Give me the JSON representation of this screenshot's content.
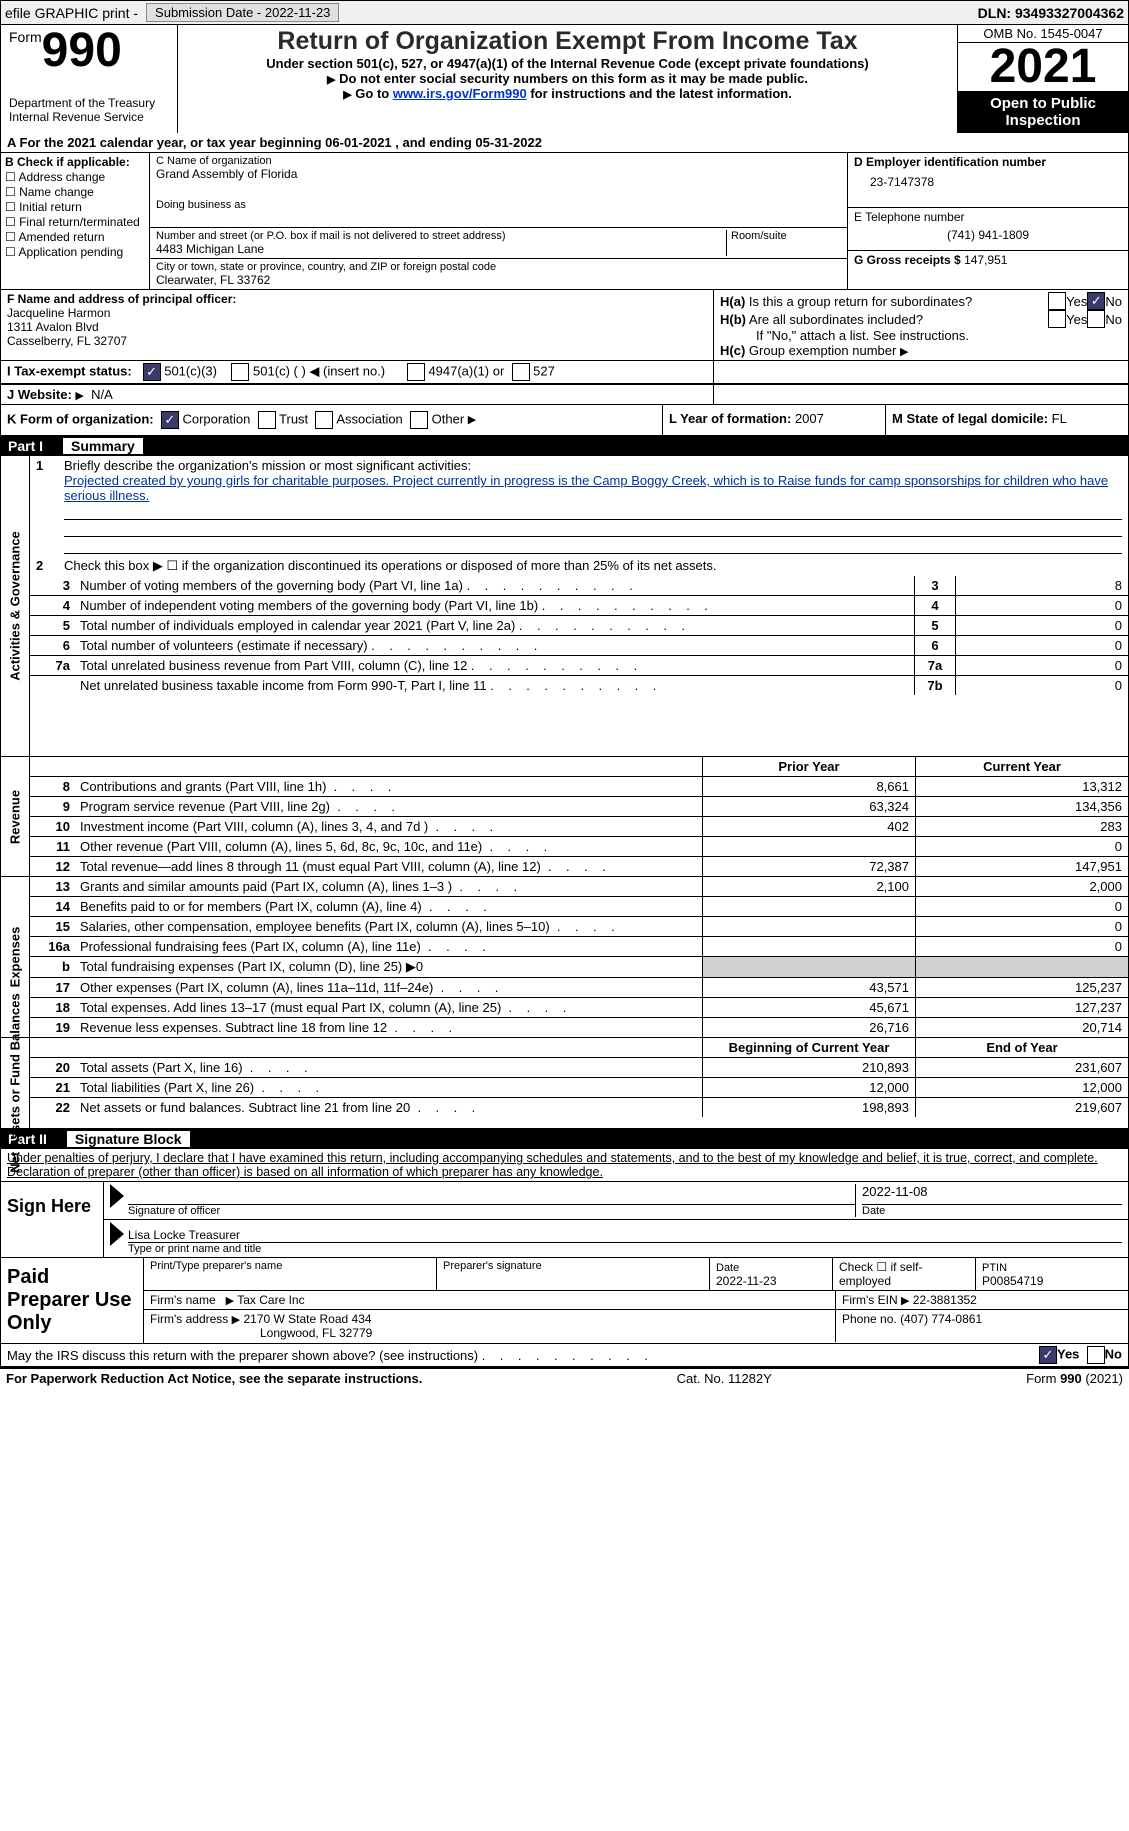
{
  "top": {
    "efile": "efile GRAPHIC print -",
    "submission": "Submission Date - 2022-11-23",
    "dln": "DLN: 93493327004362"
  },
  "header": {
    "form_word": "Form",
    "form_num": "990",
    "title": "Return of Organization Exempt From Income Tax",
    "sub1": "Under section 501(c), 527, or 4947(a)(1) of the Internal Revenue Code (except private foundations)",
    "sub2": "Do not enter social security numbers on this form as it may be made public.",
    "sub3_pre": "Go to ",
    "sub3_link": "www.irs.gov/Form990",
    "sub3_post": " for instructions and the latest information.",
    "dept": "Department of the Treasury",
    "irs": "Internal Revenue Service",
    "omb": "OMB No. 1545-0047",
    "year": "2021",
    "open": "Open to Public Inspection"
  },
  "line_a": "For the 2021 calendar year, or tax year beginning 06-01-2021    , and ending 05-31-2022",
  "box_b": {
    "header": "B Check if applicable:",
    "items": [
      "Address change",
      "Name change",
      "Initial return",
      "Final return/terminated",
      "Amended return",
      "Application pending"
    ]
  },
  "box_c": {
    "label_name": "C Name of organization",
    "org_name": "Grand Assembly of Florida",
    "dba": "Doing business as",
    "addr_label": "Number and street (or P.O. box if mail is not delivered to street address)",
    "room": "Room/suite",
    "addr": "4483 Michigan Lane",
    "city_label": "City or town, state or province, country, and ZIP or foreign postal code",
    "city": "Clearwater, FL  33762"
  },
  "box_d": {
    "ein_label": "D Employer identification number",
    "ein": "23-7147378",
    "tel_label": "E Telephone number",
    "tel": "(741) 941-1809",
    "gross_label": "G Gross receipts $",
    "gross": "147,951"
  },
  "box_f": {
    "label": "F  Name and address of principal officer:",
    "name": "Jacqueline Harmon",
    "addr1": "1311 Avalon Blvd",
    "addr2": "Casselberry, FL  32707"
  },
  "box_h": {
    "ha": "Is this a group return for subordinates?",
    "hb": "Are all subordinates included?",
    "hc_note": "If \"No,\" attach a list. See instructions.",
    "hc": "Group exemption number",
    "yes": "Yes",
    "no": "No"
  },
  "status": {
    "label": "I    Tax-exempt status:",
    "opt1": "501(c)(3)",
    "opt2": "501(c) (  ) ◀ (insert no.)",
    "opt3": "4947(a)(1) or",
    "opt4": "527"
  },
  "website": {
    "label": "J    Website:",
    "val": "N/A"
  },
  "k": {
    "label": "K Form of organization:",
    "corp": "Corporation",
    "trust": "Trust",
    "assoc": "Association",
    "other": "Other"
  },
  "l": {
    "label": "L Year of formation:",
    "val": "2007"
  },
  "m": {
    "label": "M State of legal domicile:",
    "val": "FL"
  },
  "part1": {
    "num": "Part I",
    "title": "Summary"
  },
  "mission": {
    "num": "1",
    "prompt": "Briefly describe the organization's mission or most significant activities:",
    "text": "Projected created by young girls for charitable purposes. Project currently in progress is the Camp Boggy Creek, which is to Raise funds for camp sponsorships for children who have serious illness."
  },
  "line2": "Check this box ▶ ☐  if the organization discontinued its operations or disposed of more than 25% of its net assets.",
  "sections": {
    "activities": "Activities & Governance",
    "revenue": "Revenue",
    "expenses": "Expenses",
    "netassets": "Net Assets or Fund Balances"
  },
  "activities_lines": [
    {
      "n": "3",
      "d": "Number of voting members of the governing body (Part VI, line 1a)",
      "box": "3",
      "v": "8"
    },
    {
      "n": "4",
      "d": "Number of independent voting members of the governing body (Part VI, line 1b)",
      "box": "4",
      "v": "0"
    },
    {
      "n": "5",
      "d": "Total number of individuals employed in calendar year 2021 (Part V, line 2a)",
      "box": "5",
      "v": "0"
    },
    {
      "n": "6",
      "d": "Total number of volunteers (estimate if necessary)",
      "box": "6",
      "v": "0"
    },
    {
      "n": "7a",
      "d": "Total unrelated business revenue from Part VIII, column (C), line 12",
      "box": "7a",
      "v": "0"
    },
    {
      "n": "",
      "d": "Net unrelated business taxable income from Form 990-T, Part I, line 11",
      "box": "7b",
      "v": "0"
    }
  ],
  "col_headers": {
    "prior": "Prior Year",
    "current": "Current Year",
    "beg": "Beginning of Current Year",
    "end": "End of Year"
  },
  "revenue_lines": [
    {
      "n": "8",
      "d": "Contributions and grants (Part VIII, line 1h)",
      "p": "8,661",
      "c": "13,312"
    },
    {
      "n": "9",
      "d": "Program service revenue (Part VIII, line 2g)",
      "p": "63,324",
      "c": "134,356"
    },
    {
      "n": "10",
      "d": "Investment income (Part VIII, column (A), lines 3, 4, and 7d )",
      "p": "402",
      "c": "283"
    },
    {
      "n": "11",
      "d": "Other revenue (Part VIII, column (A), lines 5, 6d, 8c, 9c, 10c, and 11e)",
      "p": "",
      "c": "0"
    },
    {
      "n": "12",
      "d": "Total revenue—add lines 8 through 11 (must equal Part VIII, column (A), line 12)",
      "p": "72,387",
      "c": "147,951"
    }
  ],
  "expense_lines": [
    {
      "n": "13",
      "d": "Grants and similar amounts paid (Part IX, column (A), lines 1–3 )",
      "p": "2,100",
      "c": "2,000"
    },
    {
      "n": "14",
      "d": "Benefits paid to or for members (Part IX, column (A), line 4)",
      "p": "",
      "c": "0"
    },
    {
      "n": "15",
      "d": "Salaries, other compensation, employee benefits (Part IX, column (A), lines 5–10)",
      "p": "",
      "c": "0"
    },
    {
      "n": "16a",
      "d": "Professional fundraising fees (Part IX, column (A), line 11e)",
      "p": "",
      "c": "0"
    },
    {
      "n": "b",
      "d": "Total fundraising expenses (Part IX, column (D), line 25) ▶0",
      "p": "grey",
      "c": "grey"
    },
    {
      "n": "17",
      "d": "Other expenses (Part IX, column (A), lines 11a–11d, 11f–24e)",
      "p": "43,571",
      "c": "125,237"
    },
    {
      "n": "18",
      "d": "Total expenses. Add lines 13–17 (must equal Part IX, column (A), line 25)",
      "p": "45,671",
      "c": "127,237"
    },
    {
      "n": "19",
      "d": "Revenue less expenses. Subtract line 18 from line 12",
      "p": "26,716",
      "c": "20,714"
    }
  ],
  "netasset_lines": [
    {
      "n": "20",
      "d": "Total assets (Part X, line 16)",
      "p": "210,893",
      "c": "231,607"
    },
    {
      "n": "21",
      "d": "Total liabilities (Part X, line 26)",
      "p": "12,000",
      "c": "12,000"
    },
    {
      "n": "22",
      "d": "Net assets or fund balances. Subtract line 21 from line 20",
      "p": "198,893",
      "c": "219,607"
    }
  ],
  "part2": {
    "num": "Part II",
    "title": "Signature Block"
  },
  "sig": {
    "declare": "Under penalties of perjury, I declare that I have examined this return, including accompanying schedules and statements, and to the best of my knowledge and belief, it is true, correct, and complete. Declaration of preparer (other than officer) is based on all information of which preparer has any knowledge.",
    "sign_here": "Sign Here",
    "sig_officer": "Signature of officer",
    "date": "Date",
    "sig_date": "2022-11-08",
    "name_title": "Lisa Locke  Treasurer",
    "type_name": "Type or print name and title"
  },
  "paid": {
    "label": "Paid Preparer Use Only",
    "print_name": "Print/Type preparer's name",
    "prep_sig": "Preparer's signature",
    "date_label": "Date",
    "date": "2022-11-23",
    "check_self": "Check ☐ if self-employed",
    "ptin_label": "PTIN",
    "ptin": "P00854719",
    "firm_name_label": "Firm's name",
    "firm_name": "Tax Care Inc",
    "firm_ein_label": "Firm's EIN",
    "firm_ein": "22-3881352",
    "firm_addr_label": "Firm's address",
    "firm_addr1": "2170 W State Road 434",
    "firm_addr2": "Longwood, FL  32779",
    "phone_label": "Phone no.",
    "phone": "(407) 774-0861"
  },
  "discuss": "May the IRS discuss this return with the preparer shown above? (see instructions)",
  "footer": {
    "pra": "For Paperwork Reduction Act Notice, see the separate instructions.",
    "cat": "Cat. No. 11282Y",
    "form": "Form 990 (2021)"
  }
}
